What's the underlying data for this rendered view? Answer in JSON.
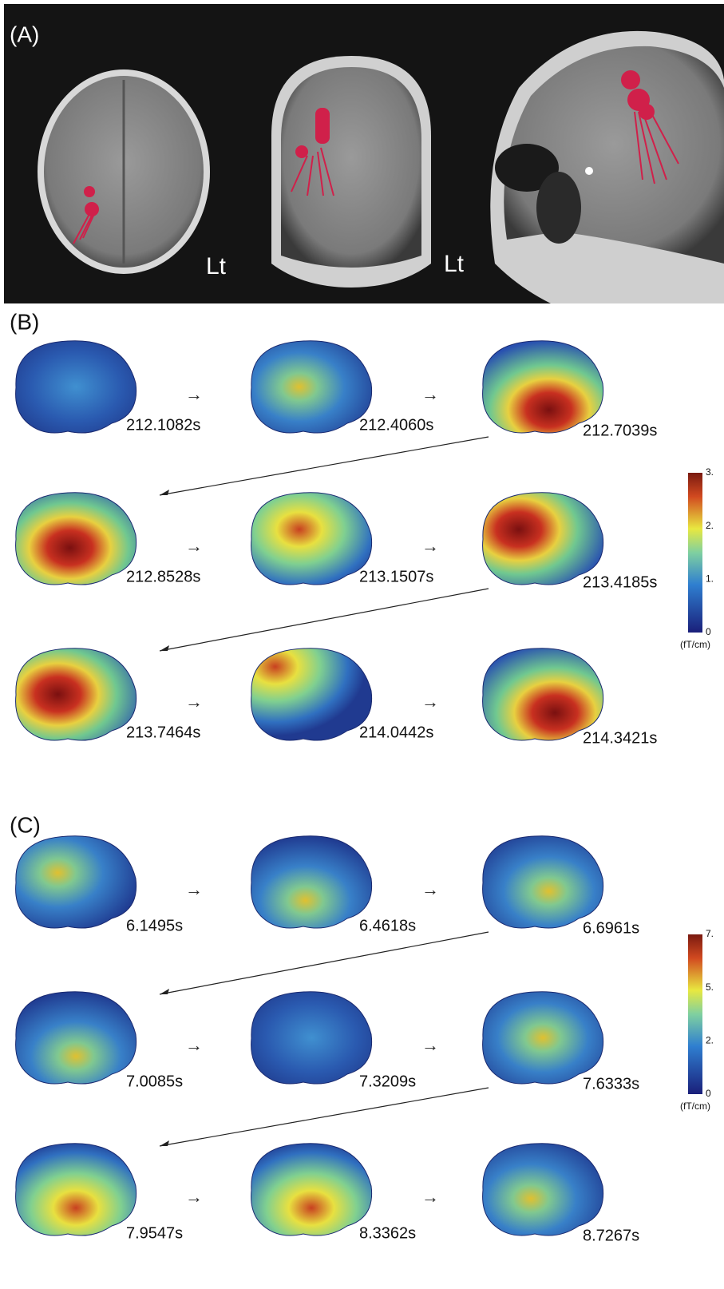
{
  "panels": [
    {
      "label": "(A)",
      "annotations": [
        "Lt",
        "Lt"
      ]
    },
    {
      "label": "(B)",
      "timestamps": [
        "212.1082s",
        "212.4060s",
        "212.7039s",
        "212.8528s",
        "213.1507s",
        "213.4185s",
        "213.7464s",
        "214.0442s",
        "214.3421s"
      ],
      "colorbar": {
        "ticks": [
          "3.",
          "2.",
          "1.",
          "0"
        ],
        "unit": "(fT/cm)"
      }
    },
    {
      "label": "(C)",
      "timestamps": [
        "6.1495s",
        "6.4618s",
        "6.6961s",
        "7.0085s",
        "7.3209s",
        "7.6333s",
        "7.9547s",
        "8.3362s",
        "8.7267s"
      ],
      "colorbar": {
        "ticks": [
          "7.",
          "5.",
          "2.",
          "0"
        ],
        "unit": "(fT/cm)"
      }
    }
  ]
}
